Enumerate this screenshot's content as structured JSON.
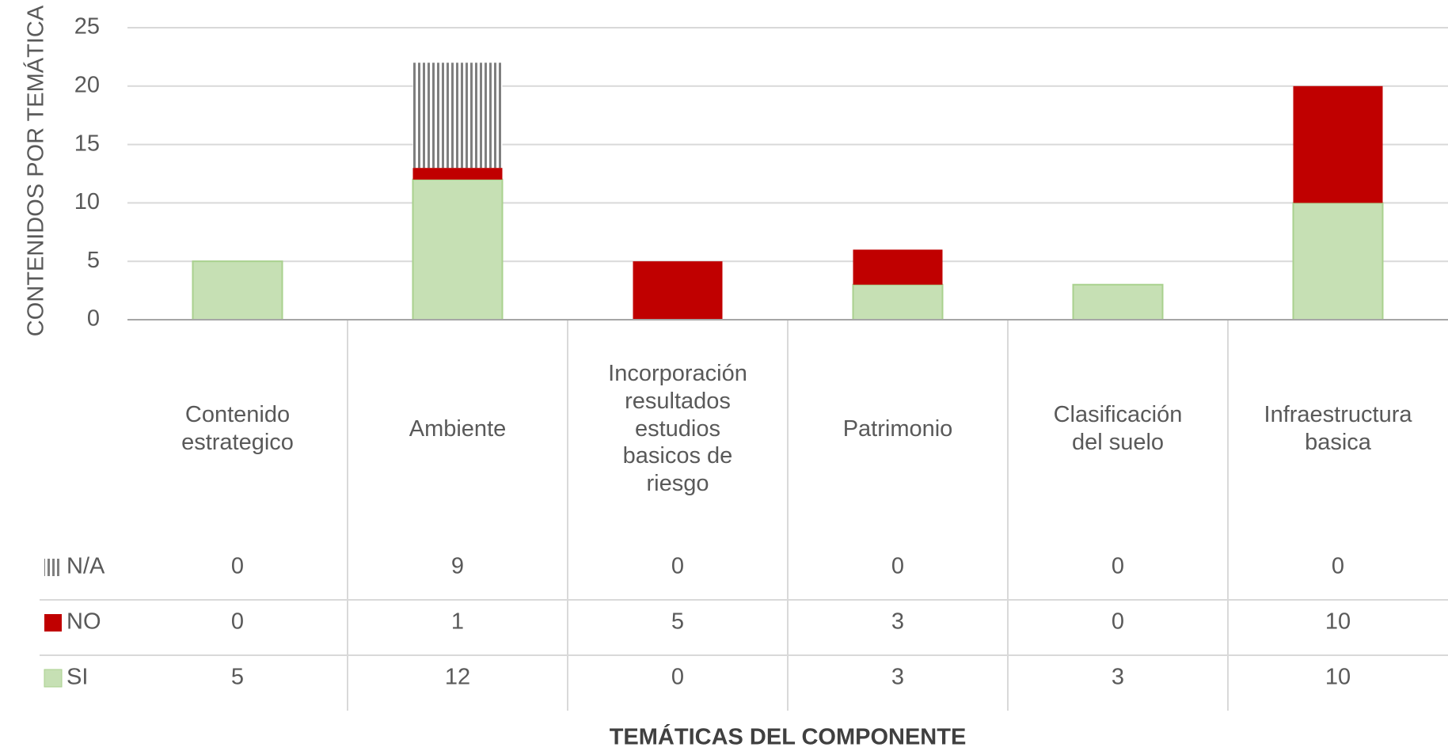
{
  "chart_data": {
    "type": "stacked-bar",
    "categories": [
      "Contenido estrategico",
      "Ambiente",
      "Incorporación resultados estudios basicos de riesgo",
      "Patrimonio",
      "Clasificación del suelo",
      "Infraestructura basica"
    ],
    "series": [
      {
        "name": "N/A",
        "color": "#7f7f7f",
        "values": [
          0,
          9,
          0,
          0,
          0,
          0
        ]
      },
      {
        "name": "NO",
        "color": "#c00000",
        "values": [
          0,
          1,
          5,
          3,
          0,
          10
        ]
      },
      {
        "name": "SI",
        "color": "#c6e0b4",
        "values": [
          5,
          12,
          0,
          3,
          3,
          10
        ]
      }
    ],
    "ylim": [
      0,
      25
    ],
    "yticks": [
      0,
      5,
      10,
      15,
      20,
      25
    ],
    "grid": true,
    "xlabel": "TEMÁTICAS DEL COMPONENTE",
    "ylabel": "CONTENIDOS POR TEMÁTICA"
  }
}
